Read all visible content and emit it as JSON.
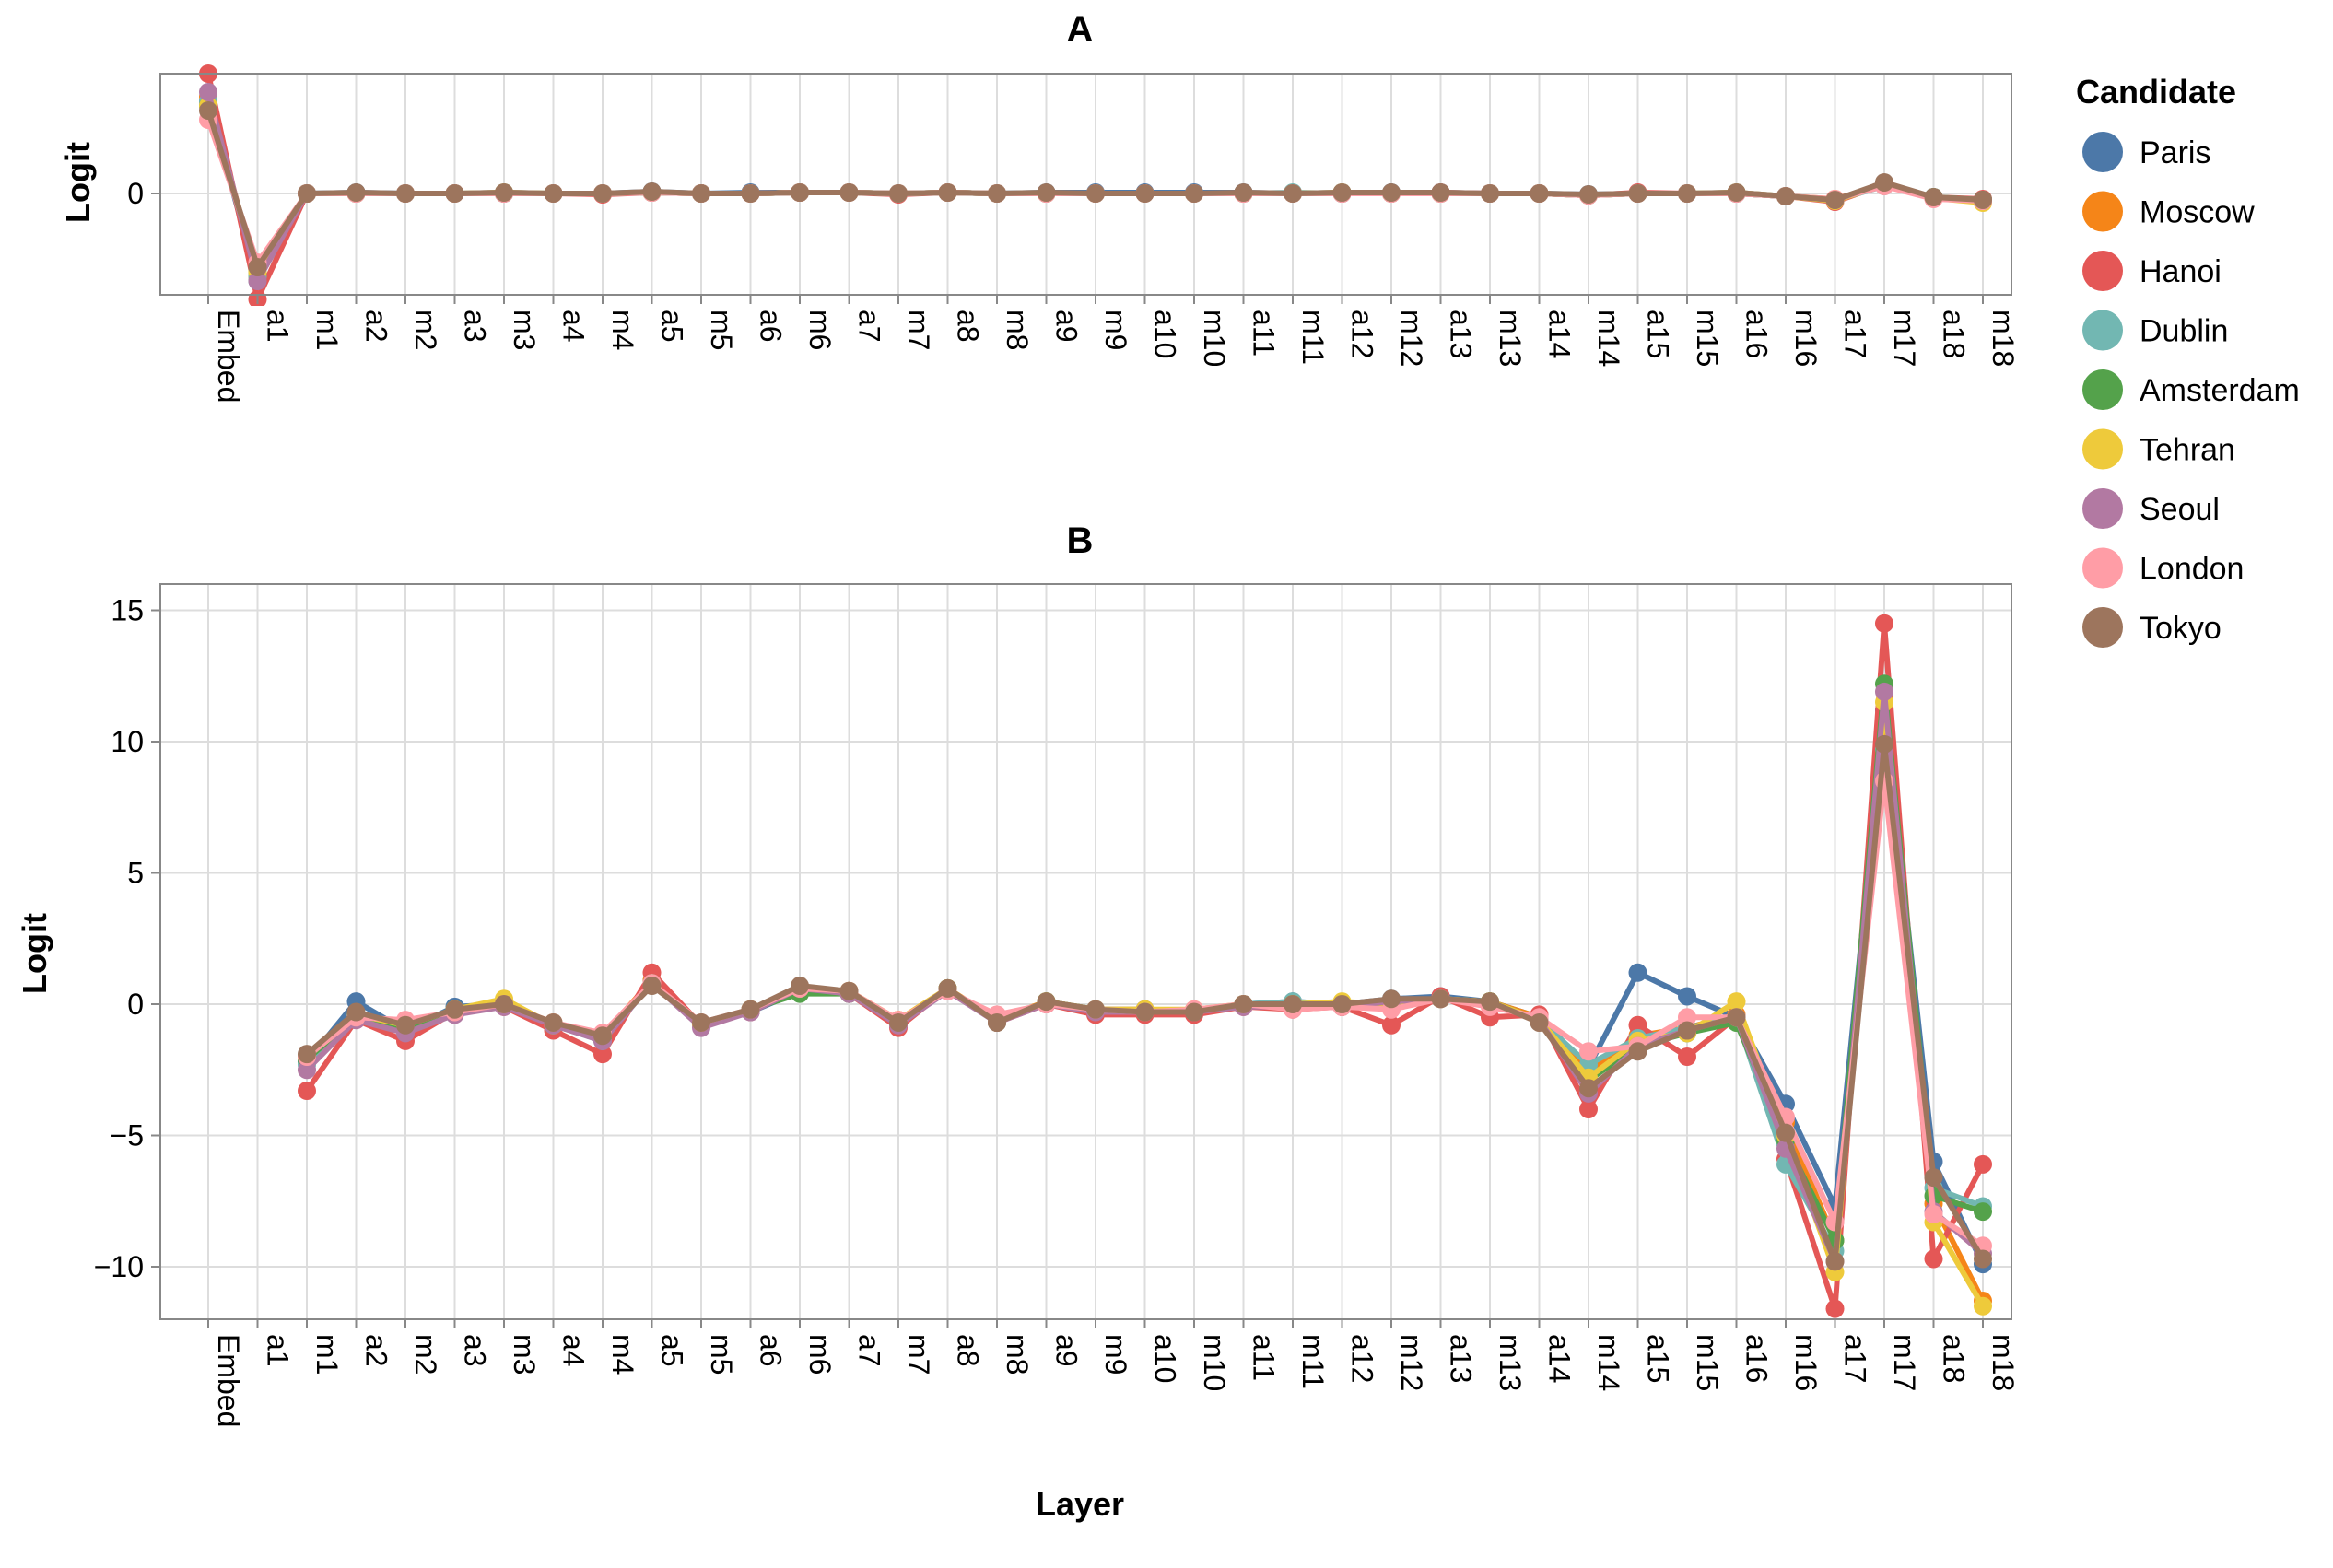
{
  "legend": {
    "title": "Candidate",
    "items": [
      {
        "name": "Paris",
        "color": "#4c78a8"
      },
      {
        "name": "Moscow",
        "color": "#f58518"
      },
      {
        "name": "Hanoi",
        "color": "#e45756"
      },
      {
        "name": "Dublin",
        "color": "#72b7b2"
      },
      {
        "name": "Amsterdam",
        "color": "#54a24b"
      },
      {
        "name": "Tehran",
        "color": "#eeca3b"
      },
      {
        "name": "Seoul",
        "color": "#b279a2"
      },
      {
        "name": "London",
        "color": "#ff9da6"
      },
      {
        "name": "Tokyo",
        "color": "#9d755d"
      }
    ]
  },
  "chart_data": [
    {
      "type": "line",
      "title": "A",
      "xlabel": "",
      "ylabel": "Logit",
      "yticks": [
        0
      ],
      "ylim": [
        -1.1,
        1.3
      ],
      "categories": [
        "Embed",
        "a1",
        "m1",
        "a2",
        "m2",
        "a3",
        "m3",
        "a4",
        "m4",
        "a5",
        "m5",
        "a6",
        "m6",
        "a7",
        "m7",
        "a8",
        "m8",
        "a9",
        "m9",
        "a10",
        "m10",
        "a11",
        "m11",
        "a12",
        "m12",
        "a13",
        "m13",
        "a14",
        "m14",
        "a15",
        "m15",
        "a16",
        "m16",
        "a17",
        "m17",
        "a18",
        "m18"
      ],
      "series": [
        {
          "name": "Paris",
          "values": [
            1.0,
            -0.95,
            0.0,
            0.01,
            0.0,
            0.0,
            0.01,
            0.0,
            0.0,
            0.02,
            0.0,
            0.01,
            0.01,
            0.01,
            0.0,
            0.01,
            0.0,
            0.01,
            0.01,
            0.01,
            0.01,
            0.01,
            0.0,
            0.01,
            0.01,
            0.01,
            0.0,
            0.0,
            -0.01,
            0.0,
            0.0,
            0.01,
            -0.03,
            -0.07,
            0.1,
            -0.05,
            -0.07
          ]
        },
        {
          "name": "Moscow",
          "values": [
            1.05,
            -0.9,
            0.0,
            0.0,
            0.0,
            0.0,
            0.0,
            0.0,
            0.0,
            0.01,
            0.0,
            0.0,
            0.01,
            0.01,
            0.0,
            0.01,
            0.0,
            0.0,
            0.0,
            0.0,
            0.0,
            0.0,
            0.0,
            0.0,
            0.0,
            0.0,
            0.0,
            0.0,
            -0.02,
            0.0,
            0.0,
            0.0,
            -0.03,
            -0.06,
            0.09,
            -0.05,
            -0.08
          ]
        },
        {
          "name": "Hanoi",
          "values": [
            1.3,
            -1.15,
            0.0,
            0.0,
            0.0,
            0.0,
            0.0,
            0.0,
            -0.01,
            0.01,
            0.0,
            0.0,
            0.01,
            0.01,
            -0.01,
            0.01,
            0.0,
            0.0,
            0.0,
            0.0,
            0.0,
            0.0,
            0.0,
            0.0,
            0.0,
            0.01,
            0.0,
            0.0,
            -0.02,
            0.01,
            0.0,
            0.0,
            -0.03,
            -0.09,
            0.1,
            -0.04,
            -0.06
          ]
        },
        {
          "name": "Dublin",
          "values": [
            1.0,
            -0.9,
            0.0,
            0.0,
            0.0,
            0.0,
            0.0,
            0.0,
            0.0,
            0.01,
            0.0,
            0.0,
            0.01,
            0.01,
            0.0,
            0.01,
            0.0,
            0.0,
            0.0,
            0.0,
            0.0,
            0.0,
            0.01,
            0.0,
            0.0,
            0.0,
            0.0,
            0.0,
            -0.02,
            0.0,
            0.0,
            0.0,
            -0.03,
            -0.07,
            0.08,
            -0.04,
            -0.07
          ]
        },
        {
          "name": "Amsterdam",
          "values": [
            0.95,
            -0.85,
            0.0,
            0.0,
            0.0,
            0.0,
            0.0,
            0.0,
            0.0,
            0.01,
            0.0,
            0.0,
            0.01,
            0.01,
            0.0,
            0.01,
            0.0,
            0.0,
            0.0,
            0.0,
            0.0,
            0.0,
            0.0,
            0.0,
            0.0,
            0.0,
            0.0,
            0.0,
            -0.02,
            0.0,
            0.0,
            0.0,
            -0.03,
            -0.07,
            0.11,
            -0.04,
            -0.07
          ]
        },
        {
          "name": "Tehran",
          "values": [
            0.95,
            -0.85,
            0.0,
            0.0,
            0.0,
            0.0,
            0.01,
            0.0,
            0.0,
            0.01,
            0.0,
            0.0,
            0.01,
            0.01,
            0.0,
            0.01,
            0.0,
            0.0,
            0.0,
            0.0,
            0.0,
            0.0,
            0.0,
            0.01,
            0.0,
            0.0,
            0.0,
            0.0,
            -0.02,
            0.0,
            0.0,
            0.01,
            -0.03,
            -0.08,
            0.1,
            -0.05,
            -0.1
          ]
        },
        {
          "name": "Seoul",
          "values": [
            1.1,
            -0.95,
            0.0,
            0.0,
            0.0,
            0.0,
            0.0,
            0.0,
            0.0,
            0.01,
            0.0,
            0.0,
            0.01,
            0.01,
            0.0,
            0.01,
            0.0,
            0.0,
            0.0,
            0.0,
            0.0,
            0.0,
            0.0,
            0.0,
            0.0,
            0.0,
            0.0,
            0.0,
            -0.02,
            0.0,
            0.0,
            0.0,
            -0.03,
            -0.07,
            0.1,
            -0.05,
            -0.08
          ]
        },
        {
          "name": "London",
          "values": [
            0.8,
            -0.75,
            0.0,
            0.0,
            0.0,
            0.0,
            0.0,
            0.0,
            0.0,
            0.01,
            0.0,
            0.0,
            0.01,
            0.01,
            0.0,
            0.01,
            0.0,
            0.0,
            0.0,
            0.0,
            0.0,
            0.0,
            0.0,
            0.0,
            0.0,
            0.0,
            0.0,
            0.0,
            -0.02,
            0.0,
            0.0,
            0.0,
            -0.03,
            -0.06,
            0.08,
            -0.06,
            -0.08
          ]
        },
        {
          "name": "Tokyo",
          "values": [
            0.9,
            -0.8,
            0.0,
            0.01,
            0.0,
            0.0,
            0.01,
            0.0,
            0.0,
            0.02,
            0.0,
            0.0,
            0.01,
            0.01,
            0.0,
            0.01,
            0.0,
            0.01,
            0.0,
            0.0,
            0.0,
            0.01,
            0.0,
            0.01,
            0.01,
            0.01,
            0.0,
            0.0,
            -0.01,
            0.0,
            0.0,
            0.01,
            -0.03,
            -0.07,
            0.12,
            -0.04,
            -0.07
          ]
        }
      ]
    },
    {
      "type": "line",
      "title": "B",
      "xlabel": "Layer",
      "ylabel": "Logit",
      "yticks": [
        15,
        10,
        5,
        0,
        -5,
        -10
      ],
      "ylim": [
        -12,
        16
      ],
      "categories": [
        "Embed",
        "a1",
        "m1",
        "a2",
        "m2",
        "a3",
        "m3",
        "a4",
        "m4",
        "a5",
        "m5",
        "a6",
        "m6",
        "a7",
        "m7",
        "a8",
        "m8",
        "a9",
        "m9",
        "a10",
        "m10",
        "a11",
        "m11",
        "a12",
        "m12",
        "a13",
        "m13",
        "a14",
        "m14",
        "a15",
        "m15",
        "a16",
        "m16",
        "a17",
        "m17",
        "a18",
        "m18"
      ],
      "series": [
        {
          "name": "Paris",
          "values": [
            null,
            null,
            -2.2,
            0.1,
            -1.0,
            -0.1,
            0.0,
            -0.8,
            -1.3,
            0.9,
            -0.8,
            -0.3,
            0.5,
            0.4,
            -0.7,
            0.6,
            -0.7,
            0.1,
            -0.2,
            -0.2,
            -0.3,
            0.0,
            0.1,
            0.0,
            0.2,
            0.3,
            0.1,
            -0.5,
            -2.4,
            1.2,
            0.3,
            -0.5,
            -3.8,
            -7.7,
            11.2,
            -6.0,
            -9.9
          ]
        },
        {
          "name": "Moscow",
          "values": [
            null,
            null,
            -2.0,
            -0.4,
            -0.8,
            -0.3,
            0.0,
            -0.7,
            -1.2,
            0.9,
            -0.8,
            -0.2,
            0.6,
            0.5,
            -0.6,
            0.6,
            -0.6,
            0.1,
            -0.2,
            -0.2,
            -0.3,
            0.0,
            0.0,
            -0.1,
            0.1,
            0.2,
            0.1,
            -0.5,
            -2.6,
            -1.2,
            -0.9,
            -0.4,
            -4.5,
            -9.0,
            10.4,
            -7.6,
            -11.3
          ]
        },
        {
          "name": "Hanoi",
          "values": [
            null,
            null,
            -3.3,
            -0.6,
            -1.4,
            -0.3,
            -0.1,
            -1.0,
            -1.9,
            1.2,
            -0.8,
            -0.3,
            0.6,
            0.4,
            -0.9,
            0.6,
            -0.7,
            0.0,
            -0.4,
            -0.4,
            -0.4,
            -0.1,
            -0.2,
            -0.1,
            -0.8,
            0.3,
            -0.5,
            -0.4,
            -4.0,
            -0.8,
            -2.0,
            -0.5,
            -5.9,
            -11.6,
            14.5,
            -9.7,
            -6.1
          ]
        },
        {
          "name": "Dublin",
          "values": [
            null,
            null,
            -2.3,
            -0.5,
            -0.9,
            -0.2,
            0.0,
            -0.8,
            -1.4,
            0.8,
            -0.8,
            -0.2,
            0.5,
            0.5,
            -0.7,
            0.6,
            -0.7,
            0.1,
            -0.2,
            -0.3,
            -0.3,
            0.0,
            0.1,
            0.0,
            0.1,
            0.2,
            0.1,
            -0.6,
            -2.3,
            -1.3,
            -0.9,
            -0.5,
            -6.1,
            -9.4,
            9.7,
            -7.0,
            -7.7
          ]
        },
        {
          "name": "Amsterdam",
          "values": [
            null,
            null,
            -2.1,
            -0.5,
            -0.9,
            -0.2,
            0.0,
            -0.8,
            -1.3,
            0.8,
            -0.8,
            -0.2,
            0.4,
            0.4,
            -0.7,
            0.6,
            -0.7,
            0.1,
            -0.2,
            -0.3,
            -0.3,
            0.0,
            0.0,
            0.0,
            0.1,
            0.2,
            0.1,
            -0.6,
            -2.9,
            -1.6,
            -1.1,
            -0.7,
            -5.2,
            -9.0,
            12.2,
            -7.3,
            -7.9
          ]
        },
        {
          "name": "Tehran",
          "values": [
            null,
            null,
            -2.0,
            -0.4,
            -0.8,
            -0.2,
            0.2,
            -0.8,
            -1.2,
            0.8,
            -0.8,
            -0.2,
            0.6,
            0.5,
            -0.6,
            0.6,
            -0.7,
            0.1,
            -0.2,
            -0.2,
            -0.2,
            0.0,
            0.0,
            0.1,
            0.0,
            0.2,
            0.1,
            -0.6,
            -2.8,
            -1.4,
            -1.1,
            0.1,
            -5.0,
            -10.2,
            11.5,
            -8.3,
            -11.5
          ]
        },
        {
          "name": "Seoul",
          "values": [
            null,
            null,
            -2.5,
            -0.6,
            -1.1,
            -0.4,
            -0.1,
            -0.8,
            -1.4,
            0.8,
            -0.9,
            -0.3,
            0.6,
            0.4,
            -0.8,
            0.5,
            -0.7,
            0.0,
            -0.3,
            -0.3,
            -0.3,
            -0.1,
            -0.1,
            -0.1,
            0.1,
            0.2,
            0.0,
            -0.6,
            -3.4,
            -1.6,
            -1.0,
            -0.5,
            -5.5,
            -9.8,
            11.9,
            -7.9,
            -9.5
          ]
        },
        {
          "name": "London",
          "values": [
            null,
            null,
            -2.0,
            -0.5,
            -0.6,
            -0.3,
            0.0,
            -0.7,
            -1.1,
            0.8,
            -0.7,
            -0.2,
            0.6,
            0.5,
            -0.6,
            0.5,
            -0.4,
            0.0,
            -0.2,
            -0.3,
            -0.2,
            0.0,
            -0.2,
            -0.1,
            -0.2,
            0.2,
            -0.1,
            -0.5,
            -1.8,
            -1.6,
            -0.5,
            -0.5,
            -4.3,
            -8.3,
            8.5,
            -8.0,
            -9.2
          ]
        },
        {
          "name": "Tokyo",
          "values": [
            null,
            null,
            -1.9,
            -0.3,
            -0.8,
            -0.2,
            0.0,
            -0.7,
            -1.2,
            0.7,
            -0.7,
            -0.2,
            0.7,
            0.5,
            -0.7,
            0.6,
            -0.7,
            0.1,
            -0.2,
            -0.3,
            -0.3,
            0.0,
            0.0,
            0.0,
            0.2,
            0.2,
            0.1,
            -0.7,
            -3.2,
            -1.8,
            -1.0,
            -0.5,
            -4.9,
            -9.8,
            9.9,
            -6.6,
            -9.7
          ]
        }
      ]
    }
  ]
}
